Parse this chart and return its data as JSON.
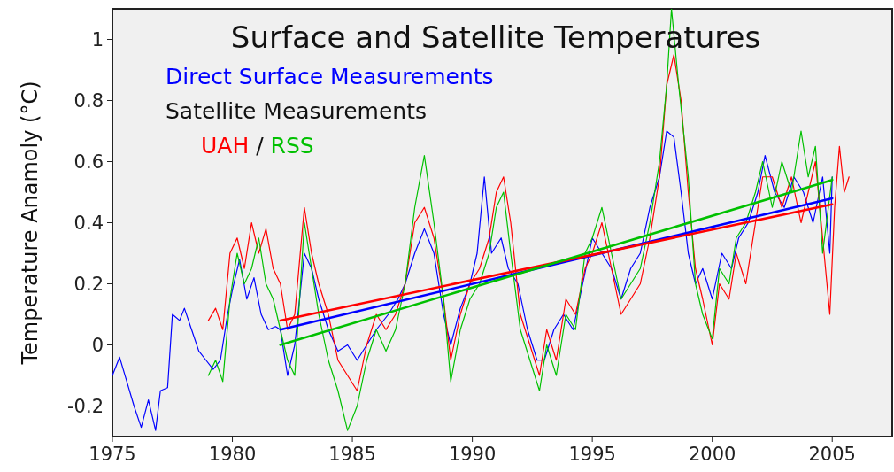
{
  "chart_data": {
    "type": "line",
    "title": "Surface and Satellite Temperatures",
    "ylabel": "Temperature Anamoly (°C)",
    "legend_title": "Satellite Measurements",
    "legend": "top left",
    "annotations": [
      "/"
    ],
    "xlim": [
      1975,
      2007.5
    ],
    "xticks": [
      1975,
      1980,
      1985,
      1990,
      1995,
      2000,
      2005
    ],
    "ylim": [
      -0.3,
      1.1
    ],
    "yticks": [
      -0.2,
      0,
      0.2,
      0.4,
      0.6,
      0.8,
      1
    ],
    "grid": false,
    "series": [
      {
        "name": "Direct Surface Measurements",
        "color": "#0000ff",
        "x": [
          1975.0,
          1975.3,
          1975.6,
          1975.9,
          1976.2,
          1976.5,
          1976.8,
          1977.0,
          1977.3,
          1977.5,
          1977.8,
          1978.0,
          1978.3,
          1978.6,
          1978.9,
          1979.2,
          1979.5,
          1979.8,
          1980.0,
          1980.3,
          1980.6,
          1980.9,
          1981.2,
          1981.5,
          1981.8,
          1982.0,
          1982.3,
          1982.6,
          1983.0,
          1983.3,
          1983.6,
          1984.0,
          1984.4,
          1984.8,
          1985.2,
          1985.6,
          1986.0,
          1986.5,
          1986.9,
          1987.2,
          1987.6,
          1988.0,
          1988.4,
          1988.8,
          1989.1,
          1989.5,
          1989.9,
          1990.2,
          1990.5,
          1990.8,
          1991.2,
          1991.5,
          1991.9,
          1992.3,
          1992.7,
          1993.0,
          1993.4,
          1993.8,
          1994.2,
          1994.6,
          1995.0,
          1995.4,
          1995.8,
          1996.2,
          1996.6,
          1997.0,
          1997.4,
          1997.8,
          1998.1,
          1998.4,
          1998.7,
          1999.0,
          1999.3,
          1999.6,
          2000.0,
          2000.4,
          2000.8,
          2001.1,
          2001.5,
          2001.9,
          2002.2,
          2002.6,
          2003.0,
          2003.4,
          2003.8,
          2004.2,
          2004.6,
          2004.9,
          2005.0
        ],
        "values": [
          -0.1,
          -0.04,
          -0.12,
          -0.2,
          -0.27,
          -0.18,
          -0.28,
          -0.15,
          -0.14,
          0.1,
          0.08,
          0.12,
          0.05,
          -0.02,
          -0.05,
          -0.08,
          -0.05,
          0.1,
          0.18,
          0.28,
          0.15,
          0.22,
          0.1,
          0.05,
          0.06,
          0.05,
          -0.1,
          0.0,
          0.3,
          0.25,
          0.15,
          0.05,
          -0.02,
          0.0,
          -0.05,
          0.0,
          0.05,
          0.1,
          0.15,
          0.2,
          0.3,
          0.38,
          0.3,
          0.1,
          0.0,
          0.12,
          0.2,
          0.3,
          0.55,
          0.3,
          0.35,
          0.25,
          0.2,
          0.05,
          -0.05,
          -0.05,
          0.05,
          0.1,
          0.05,
          0.2,
          0.35,
          0.3,
          0.25,
          0.15,
          0.25,
          0.3,
          0.45,
          0.55,
          0.7,
          0.68,
          0.5,
          0.3,
          0.2,
          0.25,
          0.15,
          0.3,
          0.25,
          0.35,
          0.4,
          0.5,
          0.62,
          0.5,
          0.45,
          0.55,
          0.5,
          0.4,
          0.55,
          0.3,
          0.55
        ]
      },
      {
        "name": "UAH",
        "color": "#ff0000",
        "x": [
          1979.0,
          1979.3,
          1979.6,
          1979.9,
          1980.2,
          1980.5,
          1980.8,
          1981.1,
          1981.4,
          1981.7,
          1982.0,
          1982.3,
          1982.6,
          1983.0,
          1983.3,
          1983.6,
          1984.0,
          1984.4,
          1984.8,
          1985.2,
          1985.6,
          1986.0,
          1986.4,
          1986.8,
          1987.2,
          1987.6,
          1988.0,
          1988.4,
          1988.8,
          1989.1,
          1989.5,
          1989.9,
          1990.3,
          1990.7,
          1991.0,
          1991.3,
          1991.6,
          1992.0,
          1992.4,
          1992.8,
          1993.1,
          1993.5,
          1993.9,
          1994.3,
          1994.7,
          1995.0,
          1995.4,
          1995.8,
          1996.2,
          1996.6,
          1997.0,
          1997.4,
          1997.8,
          1998.1,
          1998.4,
          1998.7,
          1999.0,
          1999.3,
          1999.6,
          2000.0,
          2000.3,
          2000.7,
          2001.0,
          2001.4,
          2001.8,
          2002.1,
          2002.5,
          2002.9,
          2003.3,
          2003.7,
          2004.0,
          2004.3,
          2004.6,
          2004.9,
          2005.1,
          2005.3,
          2005.5,
          2005.7
        ],
        "values": [
          0.08,
          0.12,
          0.05,
          0.3,
          0.35,
          0.25,
          0.4,
          0.3,
          0.38,
          0.25,
          0.2,
          0.05,
          0.1,
          0.45,
          0.3,
          0.2,
          0.1,
          -0.05,
          -0.1,
          -0.15,
          0.0,
          0.1,
          0.05,
          0.1,
          0.2,
          0.4,
          0.45,
          0.35,
          0.15,
          -0.05,
          0.1,
          0.2,
          0.25,
          0.35,
          0.5,
          0.55,
          0.4,
          0.1,
          0.0,
          -0.1,
          0.05,
          -0.05,
          0.15,
          0.1,
          0.25,
          0.3,
          0.4,
          0.25,
          0.1,
          0.15,
          0.2,
          0.35,
          0.55,
          0.85,
          0.95,
          0.8,
          0.5,
          0.25,
          0.15,
          0.0,
          0.2,
          0.15,
          0.3,
          0.2,
          0.4,
          0.55,
          0.55,
          0.45,
          0.55,
          0.4,
          0.5,
          0.6,
          0.35,
          0.1,
          0.45,
          0.65,
          0.5,
          0.55
        ]
      },
      {
        "name": "RSS",
        "color": "#00c000",
        "x": [
          1979.0,
          1979.3,
          1979.6,
          1979.9,
          1980.2,
          1980.5,
          1980.8,
          1981.1,
          1981.4,
          1981.7,
          1982.0,
          1982.3,
          1982.6,
          1983.0,
          1983.3,
          1983.6,
          1984.0,
          1984.4,
          1984.8,
          1985.2,
          1985.6,
          1986.0,
          1986.4,
          1986.8,
          1987.2,
          1987.6,
          1988.0,
          1988.4,
          1988.8,
          1989.1,
          1989.5,
          1989.9,
          1990.3,
          1990.7,
          1991.0,
          1991.3,
          1991.6,
          1992.0,
          1992.4,
          1992.8,
          1993.1,
          1993.5,
          1993.9,
          1994.3,
          1994.7,
          1995.0,
          1995.4,
          1995.8,
          1996.2,
          1996.6,
          1997.0,
          1997.4,
          1997.8,
          1998.1,
          1998.3,
          1998.6,
          1999.0,
          1999.3,
          1999.6,
          2000.0,
          2000.3,
          2000.7,
          2001.0,
          2001.4,
          2001.8,
          2002.1,
          2002.5,
          2002.9,
          2003.3,
          2003.7,
          2004.0,
          2004.3,
          2004.6,
          2005.0
        ],
        "values": [
          -0.1,
          -0.05,
          -0.12,
          0.15,
          0.3,
          0.2,
          0.25,
          0.35,
          0.2,
          0.15,
          0.05,
          -0.05,
          -0.1,
          0.4,
          0.25,
          0.1,
          -0.05,
          -0.15,
          -0.28,
          -0.2,
          -0.05,
          0.05,
          -0.02,
          0.05,
          0.2,
          0.45,
          0.62,
          0.4,
          0.15,
          -0.12,
          0.05,
          0.15,
          0.2,
          0.3,
          0.45,
          0.5,
          0.3,
          0.05,
          -0.05,
          -0.15,
          0.0,
          -0.1,
          0.1,
          0.05,
          0.3,
          0.35,
          0.45,
          0.3,
          0.15,
          0.2,
          0.25,
          0.4,
          0.6,
          0.85,
          1.1,
          0.85,
          0.55,
          0.2,
          0.1,
          0.02,
          0.25,
          0.2,
          0.35,
          0.4,
          0.5,
          0.6,
          0.45,
          0.6,
          0.5,
          0.7,
          0.55,
          0.65,
          0.3,
          0.55
        ]
      },
      {
        "type": "line",
        "color": "#0000ff",
        "x": [
          1982,
          2005
        ],
        "values": [
          0.05,
          0.48
        ]
      },
      {
        "type": "line",
        "color": "#ff0000",
        "x": [
          1982,
          2005
        ],
        "values": [
          0.08,
          0.46
        ]
      },
      {
        "type": "line",
        "color": "#00c000",
        "x": [
          1982,
          2005
        ],
        "values": [
          0.0,
          0.54
        ]
      }
    ]
  }
}
